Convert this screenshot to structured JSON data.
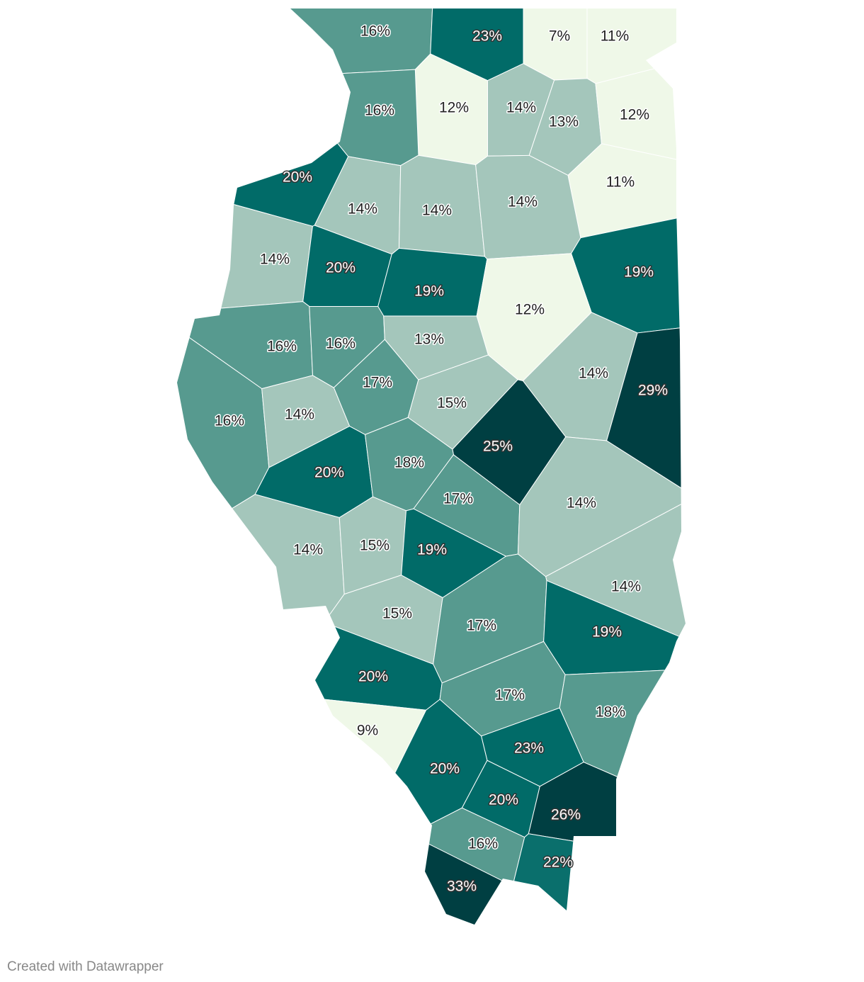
{
  "chart_data": {
    "type": "choropleth",
    "values": [
      16,
      23,
      7,
      11,
      12,
      14,
      13,
      16,
      12,
      20,
      11,
      14,
      14,
      14,
      14,
      20,
      19,
      19,
      12,
      16,
      16,
      13,
      17,
      14,
      29,
      16,
      14,
      15,
      25,
      20,
      18,
      17,
      14,
      14,
      15,
      19,
      14,
      15,
      17,
      19,
      20,
      17,
      18,
      9,
      23,
      20,
      20,
      26,
      16,
      22,
      33
    ],
    "value_labels": [
      "16%",
      "23%",
      "7%",
      "11%",
      "12%",
      "14%",
      "13%",
      "16%",
      "12%",
      "20%",
      "11%",
      "14%",
      "14%",
      "14%",
      "14%",
      "20%",
      "19%",
      "19%",
      "12%",
      "16%",
      "16%",
      "13%",
      "17%",
      "14%",
      "29%",
      "16%",
      "14%",
      "15%",
      "25%",
      "20%",
      "18%",
      "17%",
      "14%",
      "14%",
      "15%",
      "19%",
      "14%",
      "15%",
      "17%",
      "19%",
      "20%",
      "17%",
      "18%",
      "9%",
      "23%",
      "20%",
      "20%",
      "26%",
      "16%",
      "22%",
      "33%"
    ],
    "colors": [
      "#579a8f",
      "#016b68",
      "#eff8e8",
      "#eff8e8",
      "#eff8e8",
      "#a4c6bb",
      "#a4c6bb",
      "#579a8f",
      "#eff8e8",
      "#016b68",
      "#eff8e8",
      "#a4c6bb",
      "#a4c6bb",
      "#a4c6bb",
      "#a4c6bb",
      "#016b68",
      "#016b68",
      "#016b68",
      "#eff8e8",
      "#579a8f",
      "#579a8f",
      "#a4c6bb",
      "#579a8f",
      "#a4c6bb",
      "#003f42",
      "#579a8f",
      "#a4c6bb",
      "#a4c6bb",
      "#003f42",
      "#016b68",
      "#579a8f",
      "#579a8f",
      "#a4c6bb",
      "#a4c6bb",
      "#a4c6bb",
      "#016b68",
      "#a4c6bb",
      "#a4c6bb",
      "#579a8f",
      "#016b68",
      "#016b68",
      "#579a8f",
      "#579a8f",
      "#eff8e8",
      "#016b68",
      "#016b68",
      "#016b68",
      "#003f42",
      "#579a8f",
      "#0a6f6c",
      "#003f42"
    ],
    "footer": "Created with Datawrapper"
  }
}
